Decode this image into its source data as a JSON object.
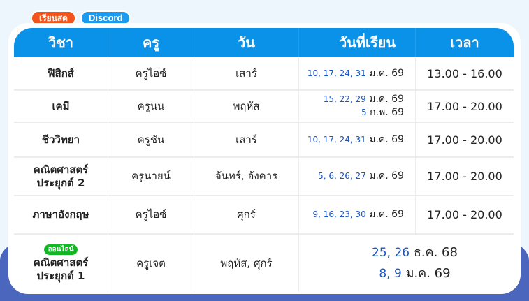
{
  "badges": {
    "onsite": "เรียนสด",
    "discord": "Discord"
  },
  "headers": [
    "วิชา",
    "ครู",
    "วัน",
    "วันที่เรียน",
    "เวลา"
  ],
  "rows": [
    {
      "subject": [
        "ฟิสิกส์"
      ],
      "teacher": "ครูไอซ์",
      "day": "เสาร์",
      "dates": [
        {
          "days": "10, 17, 24, 31",
          "month": "ม.ค. 69"
        }
      ],
      "time": "13.00 - 16.00"
    },
    {
      "subject": [
        "เคมี"
      ],
      "teacher": "ครูนน",
      "day": "พฤหัส",
      "dates": [
        {
          "days": "15, 22, 29",
          "month": "ม.ค. 69"
        },
        {
          "days": "5",
          "month": "ก.พ. 69"
        }
      ],
      "time": "17.00 - 20.00"
    },
    {
      "subject": [
        "ชีววิทยา"
      ],
      "teacher": "ครูชัน",
      "day": "เสาร์",
      "dates": [
        {
          "days": "10, 17, 24, 31",
          "month": "ม.ค. 69"
        }
      ],
      "time": "17.00 - 20.00"
    },
    {
      "subject": [
        "คณิตศาสตร์",
        "ประยุกต์ 2"
      ],
      "teacher": "ครูนายน์",
      "day": "จันทร์, อังคาร",
      "dates": [
        {
          "days": "5, 6, 26, 27",
          "month": "ม.ค. 69"
        }
      ],
      "time": "17.00 - 20.00"
    },
    {
      "subject": [
        "ภาษาอังกฤษ"
      ],
      "teacher": "ครูไอซ์",
      "day": "ศุกร์",
      "dates": [
        {
          "days": "9, 16, 23, 30",
          "month": "ม.ค. 69"
        }
      ],
      "time": "17.00 - 20.00"
    },
    {
      "badge": "ออนไลน์",
      "subject": [
        "คณิตศาสตร์",
        "ประยุกต์ 1"
      ],
      "teacher": "ครูเจต",
      "day": "พฤหัส, ศุกร์",
      "dates": [
        {
          "days": "25, 26",
          "month": "ธ.ค. 68"
        },
        {
          "days": "8, 9",
          "month": "ม.ค. 69"
        }
      ],
      "time": ""
    }
  ],
  "colors": {
    "header": "#0a91e8",
    "onsite": "#f2541b",
    "discord": "#1a9bf0",
    "online": "#12b824",
    "date_numbers": "#1a56c4",
    "wave": "#4a66bd"
  }
}
